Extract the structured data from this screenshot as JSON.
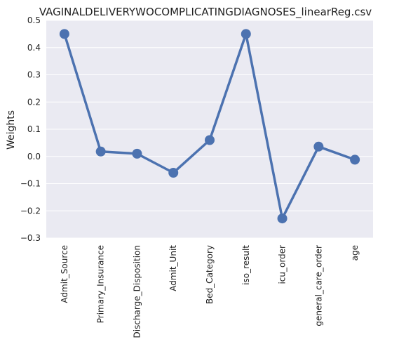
{
  "chart_data": {
    "type": "line",
    "title": "VAGINALDELIVERYWOCOMPLICATINGDIAGNOSES_linearReg.csv",
    "xlabel": "",
    "ylabel": "Weights",
    "categories": [
      "Admit_Source",
      "Primary_Insurance",
      "Discharge_Disposition",
      "Admit_Unit",
      "Bed_Category",
      "iso_result",
      "icu_order",
      "general_care_order",
      "age"
    ],
    "values": [
      0.45,
      0.018,
      0.01,
      -0.06,
      0.06,
      0.45,
      -0.228,
      0.036,
      -0.012
    ],
    "ylim": [
      -0.3,
      0.5
    ],
    "yticks": [
      "0.5",
      "0.4",
      "0.3",
      "0.2",
      "0.1",
      "0.0",
      "−0.1",
      "−0.2",
      "−0.3"
    ],
    "grid": true,
    "colors": {
      "line": "#4c72b0",
      "background": "#eaeaf2",
      "grid": "#ffffff"
    }
  }
}
